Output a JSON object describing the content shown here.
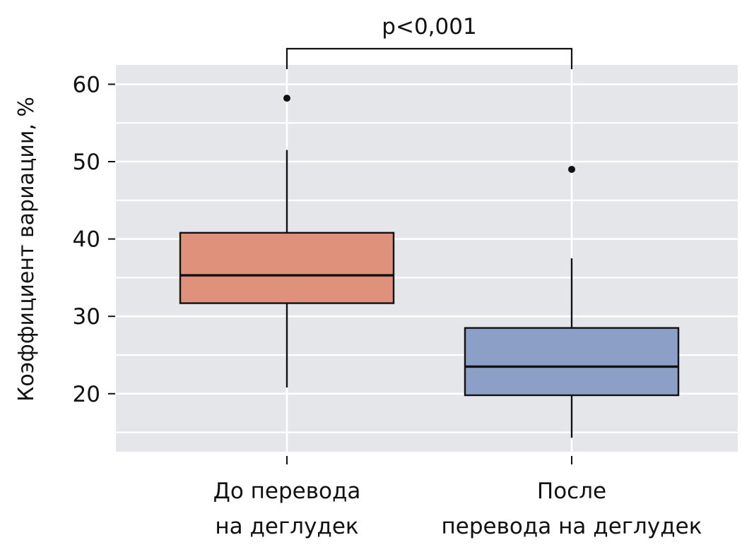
{
  "chart_data": {
    "type": "boxplot",
    "ylabel": "Коэффициент вариации, %",
    "ylim": [
      12.5,
      62.5
    ],
    "yticks": [
      20,
      30,
      40,
      50,
      60
    ],
    "minor_yticks": [
      15,
      25,
      35,
      45,
      55
    ],
    "grid": true,
    "background": "#e5e6e9",
    "categories": [
      {
        "lines": [
          "До перевода",
          "на деглудек"
        ]
      },
      {
        "lines": [
          "После",
          "перевода на деглудек"
        ]
      }
    ],
    "boxes": [
      {
        "category": 0,
        "whisker_low": 20.8,
        "q1": 31.7,
        "median": 35.3,
        "q3": 40.8,
        "whisker_high": 51.5,
        "outliers": [
          58.2
        ],
        "color": "#e0917b"
      },
      {
        "category": 1,
        "whisker_low": 14.3,
        "q1": 19.8,
        "median": 23.5,
        "q3": 28.5,
        "whisker_high": 37.5,
        "outliers": [
          49.0
        ],
        "color": "#8c9fc6"
      }
    ],
    "annotation": {
      "text": "p<0,001",
      "between": [
        0,
        1
      ]
    }
  }
}
